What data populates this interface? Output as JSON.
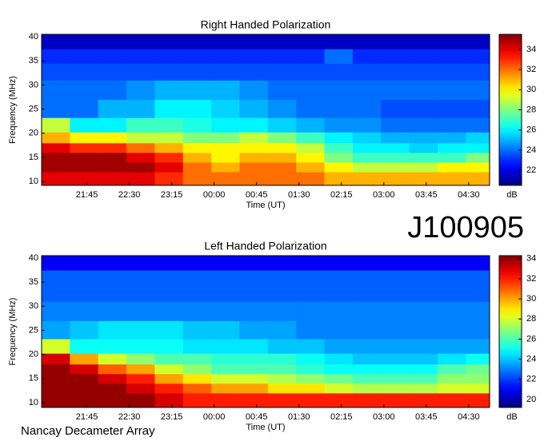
{
  "chart_data": [
    {
      "type": "heatmap",
      "title": "Right Handed Polarization",
      "xlabel": "Time (UT)",
      "ylabel": "Frequency (MHz)",
      "colormap": "jet",
      "colorbar_label": "dB",
      "x": [
        21.2,
        21.7,
        22.2,
        22.7,
        23.2,
        23.7,
        24.2,
        24.7,
        25.2,
        25.7,
        26.2,
        26.7,
        27.2,
        27.7,
        28.2,
        28.7
      ],
      "y": [
        11,
        13,
        15,
        17,
        19,
        21.5,
        25,
        29,
        33,
        36,
        39
      ],
      "values": [
        [
          34,
          34,
          34,
          34,
          33,
          32,
          32,
          32,
          32,
          32,
          31,
          31,
          31,
          31,
          31,
          31
        ],
        [
          35,
          35,
          35,
          35,
          34,
          32,
          31,
          32,
          32,
          31,
          30,
          29,
          29,
          29,
          30,
          30
        ],
        [
          35,
          35,
          35,
          34,
          33,
          31,
          30,
          31,
          31,
          30,
          28,
          27,
          27,
          27,
          27,
          28
        ],
        [
          34,
          33,
          33,
          32,
          31,
          30,
          30,
          30,
          30,
          29,
          27,
          26,
          26,
          25.5,
          26,
          26
        ],
        [
          31,
          30,
          30,
          29,
          29,
          28,
          28,
          29,
          28,
          27,
          26,
          25.5,
          25,
          25,
          25,
          25.5
        ],
        [
          29,
          26,
          26,
          27,
          27,
          26.5,
          26,
          26,
          25.5,
          25,
          24.5,
          24.5,
          24,
          24,
          24,
          24
        ],
        [
          24,
          24,
          25,
          25,
          26,
          26,
          25.5,
          25,
          24.5,
          24,
          24,
          24,
          23.5,
          23.5,
          23.5,
          23.5
        ],
        [
          24,
          24,
          24,
          24.5,
          25,
          25,
          25,
          24.5,
          24,
          24,
          24,
          24,
          24,
          24,
          24,
          24
        ],
        [
          23.5,
          23.5,
          23.5,
          23.5,
          23.5,
          23.5,
          23.5,
          23.5,
          23.5,
          23.5,
          23.5,
          23.5,
          23.5,
          23.5,
          23.5,
          23.5
        ],
        [
          23,
          23,
          23,
          23,
          23,
          23,
          23,
          23,
          23,
          23,
          24,
          23,
          23,
          23,
          23,
          23
        ],
        [
          21.5,
          21.5,
          21.5,
          21.5,
          21.5,
          21.5,
          21.5,
          21.5,
          21.5,
          21.5,
          21.5,
          21.5,
          21.5,
          21.5,
          21.5,
          21.5
        ]
      ],
      "xlim": [
        20.95,
        28.87
      ],
      "ylim": [
        9.2,
        40.5
      ],
      "xticks": [
        {
          "value": 21.75,
          "label": "21:45"
        },
        {
          "value": 22.5,
          "label": "22:30"
        },
        {
          "value": 23.25,
          "label": "23:15"
        },
        {
          "value": 24,
          "label": "00:00"
        },
        {
          "value": 24.75,
          "label": "00:45"
        },
        {
          "value": 25.5,
          "label": "01:30"
        },
        {
          "value": 26.25,
          "label": "02:15"
        },
        {
          "value": 27,
          "label": "03:00"
        },
        {
          "value": 27.75,
          "label": "03:45"
        },
        {
          "value": 28.5,
          "label": "04:30"
        }
      ],
      "yticks": [
        10,
        15,
        20,
        25,
        30,
        35,
        40
      ],
      "clim": [
        20.5,
        35.5
      ],
      "cticks": [
        22,
        24,
        26,
        28,
        30,
        32,
        34
      ]
    },
    {
      "type": "heatmap",
      "title": "Left Handed Polarization",
      "xlabel": "Time (UT)",
      "ylabel": "Frequency (MHz)",
      "colormap": "jet",
      "colorbar_label": "dB",
      "x": [
        21.2,
        21.7,
        22.2,
        22.7,
        23.2,
        23.7,
        24.2,
        24.7,
        25.2,
        25.7,
        26.2,
        26.7,
        27.2,
        27.7,
        28.2,
        28.7
      ],
      "y": [
        11,
        13,
        15,
        17,
        19,
        21.5,
        25,
        29,
        33,
        36,
        39
      ],
      "values": [
        [
          34,
          34,
          34,
          34,
          33,
          32,
          32,
          32,
          32,
          32,
          32,
          32,
          32,
          32,
          32,
          32
        ],
        [
          34,
          34,
          34,
          33,
          32,
          31,
          30,
          30,
          29,
          29,
          28,
          27.5,
          27.5,
          27.5,
          28,
          28
        ],
        [
          34,
          34,
          33,
          32,
          30,
          29,
          28,
          28,
          27.5,
          27,
          26.5,
          26,
          26,
          26,
          27,
          27
        ],
        [
          34,
          33,
          31,
          30,
          28,
          27,
          26,
          26,
          26,
          25.5,
          25,
          25,
          25,
          25,
          26,
          26.5
        ],
        [
          33,
          30,
          28,
          27,
          26,
          26,
          25.5,
          25.5,
          25.5,
          25,
          24.5,
          24,
          24,
          24,
          24.5,
          25
        ],
        [
          28,
          25,
          25,
          25,
          25,
          24.5,
          24.5,
          24.5,
          24,
          24,
          23.5,
          23.5,
          23.5,
          23.5,
          23.5,
          23.5
        ],
        [
          23.5,
          24,
          24.5,
          24.5,
          24.5,
          24,
          24,
          23.5,
          23.5,
          23,
          23,
          23,
          23,
          23,
          23,
          23
        ],
        [
          23,
          23,
          23,
          23,
          23,
          23,
          23,
          23,
          23,
          23,
          23,
          23,
          23,
          23,
          23,
          23
        ],
        [
          22.5,
          22.5,
          22.5,
          22.5,
          22.5,
          22.5,
          22.5,
          22.5,
          22.5,
          22.5,
          22.5,
          22.5,
          22.5,
          22.5,
          22.5,
          22.5
        ],
        [
          22.5,
          22.5,
          22.5,
          22.5,
          22.5,
          22.5,
          22.5,
          22.5,
          22.5,
          22.5,
          22.5,
          22.5,
          22.5,
          22.5,
          22.5,
          22.5
        ],
        [
          21,
          21,
          21,
          21,
          21,
          21,
          21,
          21,
          21,
          21,
          21,
          21,
          21,
          21,
          21,
          21
        ]
      ],
      "xlim": [
        20.95,
        28.87
      ],
      "ylim": [
        9.0,
        40.5
      ],
      "xticks": [
        {
          "value": 21.75,
          "label": "21:45"
        },
        {
          "value": 22.5,
          "label": "22:30"
        },
        {
          "value": 23.25,
          "label": "23:15"
        },
        {
          "value": 24,
          "label": "00:00"
        },
        {
          "value": 24.75,
          "label": "00:45"
        },
        {
          "value": 25.5,
          "label": "01:30"
        },
        {
          "value": 26.25,
          "label": "02:15"
        },
        {
          "value": 27,
          "label": "03:00"
        },
        {
          "value": 27.75,
          "label": "03:45"
        },
        {
          "value": 28.5,
          "label": "04:30"
        }
      ],
      "yticks": [
        10,
        15,
        20,
        25,
        30,
        35,
        40
      ],
      "clim": [
        19.2,
        34.3
      ],
      "cticks": [
        20,
        22,
        24,
        26,
        28,
        30,
        32,
        34
      ]
    }
  ],
  "label": "J100905",
  "footer": "Nancay Decameter Array"
}
